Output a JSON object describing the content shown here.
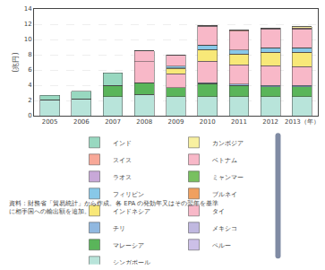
{
  "chart_data": {
    "type": "bar",
    "stacked": true,
    "ylabel": "(兆円)",
    "categories": [
      "2005",
      "2006",
      "2007",
      "2008",
      "2009",
      "2010",
      "2011",
      "2012",
      "2013（年）"
    ],
    "ylim": [
      0,
      14
    ],
    "yticks": [
      0,
      2,
      4,
      6,
      8,
      10,
      12,
      14
    ],
    "grid": true,
    "legend": "bottom",
    "series": [
      {
        "name": "シンガポール",
        "color": "#b8e4da",
        "values": [
          2.1,
          2.2,
          2.5,
          2.8,
          2.5,
          2.5,
          2.5,
          2.5,
          2.5
        ]
      },
      {
        "name": "ペルー",
        "color": "#ccc0e8",
        "values": [
          0.0,
          0.0,
          0.0,
          0.0,
          0.0,
          0.0,
          0.0,
          0.0,
          0.0
        ]
      },
      {
        "name": "マレーシア",
        "color": "#5ab55a",
        "values": [
          0.0,
          0.0,
          1.5,
          1.5,
          1.2,
          1.7,
          1.5,
          1.3,
          1.3
        ]
      },
      {
        "name": "メキシコ",
        "color": "#c0b8e0",
        "values": [
          0.0,
          0.0,
          0.0,
          0.0,
          0.0,
          0.0,
          0.0,
          0.0,
          0.0
        ]
      },
      {
        "name": "チリ",
        "color": "#90b8e0",
        "values": [
          0.0,
          0.0,
          0.0,
          0.0,
          0.0,
          0.15,
          0.15,
          0.15,
          0.15
        ]
      },
      {
        "name": "タイ",
        "color": "#f8b8c8",
        "values": [
          0.0,
          0.0,
          0.0,
          2.8,
          1.8,
          2.8,
          2.5,
          2.6,
          2.5
        ]
      },
      {
        "name": "インドネシア",
        "color": "#f8e878",
        "values": [
          0.0,
          0.0,
          0.0,
          0.0,
          0.7,
          1.5,
          1.4,
          1.7,
          1.8
        ]
      },
      {
        "name": "ブルネイ",
        "color": "#f0a060",
        "values": [
          0.0,
          0.0,
          0.0,
          0.0,
          0.05,
          0.05,
          0.05,
          0.05,
          0.05
        ]
      },
      {
        "name": "フィリピン",
        "color": "#88c8e8",
        "values": [
          0.0,
          0.0,
          0.0,
          0.0,
          0.25,
          0.55,
          0.5,
          0.6,
          0.6
        ]
      },
      {
        "name": "ミャンマー",
        "color": "#78c060",
        "values": [
          0.0,
          0.0,
          0.0,
          0.0,
          0.0,
          0.0,
          0.0,
          0.0,
          0.0
        ]
      },
      {
        "name": "ラオス",
        "color": "#c8a8d8",
        "values": [
          0.0,
          0.0,
          0.0,
          0.0,
          0.0,
          0.0,
          0.0,
          0.0,
          0.0
        ]
      },
      {
        "name": "ベトナム",
        "color": "#f8b8c8",
        "values": [
          0.0,
          0.0,
          0.0,
          1.4,
          1.5,
          2.5,
          2.5,
          2.5,
          2.5
        ]
      },
      {
        "name": "スイス",
        "color": "#f8a898",
        "values": [
          0.0,
          0.0,
          0.0,
          0.0,
          0.0,
          0.1,
          0.1,
          0.1,
          0.1
        ]
      },
      {
        "name": "カンボジア",
        "color": "#f8f0a0",
        "values": [
          0.0,
          0.0,
          0.0,
          0.0,
          0.0,
          0.0,
          0.0,
          0.0,
          0.15
        ]
      },
      {
        "name": "インド",
        "color": "#98d8c0",
        "values": [
          0.6,
          1.0,
          1.6,
          0.0,
          0.0,
          0.0,
          0.0,
          0.0,
          0.0
        ]
      }
    ],
    "annotations": [
      "資料：財務省「貿易統計」から作成。各 EPA の発効年又はその翌年を基準",
      "に相手国への輸出額を追加。"
    ]
  }
}
